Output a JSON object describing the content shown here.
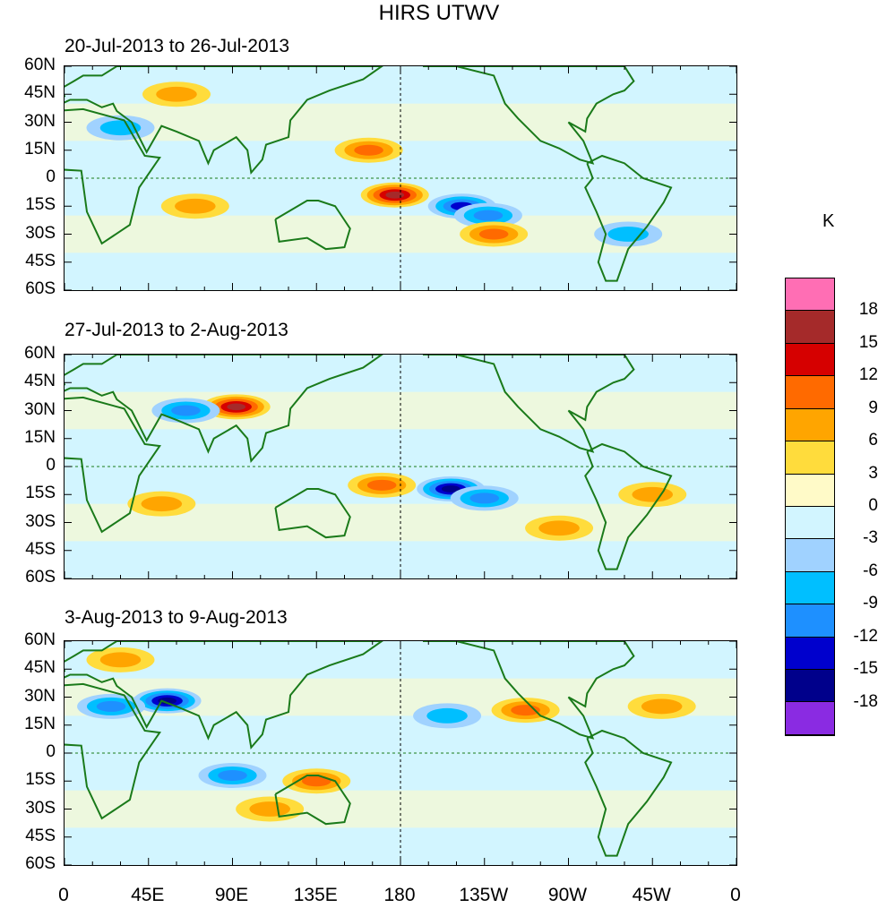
{
  "figure": {
    "title": "HIRS UTWV"
  },
  "panels": [
    {
      "title": "20-Jul-2013 to 26-Jul-2013"
    },
    {
      "title": "27-Jul-2013 to 2-Aug-2013"
    },
    {
      "title": "3-Aug-2013 to 9-Aug-2013"
    }
  ],
  "axes": {
    "latitude_ticks": [
      "60N",
      "45N",
      "30N",
      "15N",
      "0",
      "15S",
      "30S",
      "45S",
      "60S"
    ],
    "longitude_ticks": [
      "0",
      "45E",
      "90E",
      "135E",
      "180",
      "135W",
      "90W",
      "45W",
      "0"
    ]
  },
  "colorbar": {
    "unit": "K",
    "labels": [
      "18",
      "15",
      "12",
      "9",
      "6",
      "3",
      "0",
      "-3",
      "-6",
      "-9",
      "-12",
      "-15",
      "-18"
    ],
    "colors": [
      "#ff6eb4",
      "#a52a2a",
      "#d60000",
      "#ff6a00",
      "#ffa500",
      "#ffdc3c",
      "#fffac8",
      "#d2f5ff",
      "#a0d2ff",
      "#00bfff",
      "#1e90ff",
      "#0000cd",
      "#00008b",
      "#8a2be2"
    ]
  },
  "chart_data": {
    "type": "heatmap",
    "title": "HIRS UTWV",
    "panels": [
      "20-Jul-2013 to 26-Jul-2013",
      "27-Jul-2013 to 2-Aug-2013",
      "3-Aug-2013 to 9-Aug-2013"
    ],
    "lon_range": [
      0,
      360
    ],
    "lat_range": [
      -60,
      60
    ],
    "levels": [
      -18,
      -15,
      -12,
      -9,
      -6,
      -3,
      0,
      3,
      6,
      9,
      12,
      15,
      18
    ],
    "unit": "K",
    "features": [
      [
        {
          "lon": 177,
          "lat": -9,
          "value": 15
        },
        {
          "lon": 213,
          "lat": -15,
          "value": -12
        },
        {
          "lon": 227,
          "lat": -20,
          "value": -9
        },
        {
          "lon": 163,
          "lat": 15,
          "value": 9
        },
        {
          "lon": 230,
          "lat": -30,
          "value": 9
        },
        {
          "lon": 70,
          "lat": -15,
          "value": 6
        },
        {
          "lon": 60,
          "lat": 45,
          "value": 6
        },
        {
          "lon": 302,
          "lat": -30,
          "value": -6
        },
        {
          "lon": 30,
          "lat": 27,
          "value": -6
        }
      ],
      [
        {
          "lon": 92,
          "lat": 32,
          "value": 15
        },
        {
          "lon": 207,
          "lat": -12,
          "value": -15
        },
        {
          "lon": 225,
          "lat": -17,
          "value": -9
        },
        {
          "lon": 170,
          "lat": -10,
          "value": 9
        },
        {
          "lon": 65,
          "lat": 30,
          "value": -9
        },
        {
          "lon": 265,
          "lat": -33,
          "value": 6
        },
        {
          "lon": 315,
          "lat": -15,
          "value": 6
        },
        {
          "lon": 52,
          "lat": -20,
          "value": 6
        }
      ],
      [
        {
          "lon": 55,
          "lat": 28,
          "value": -15
        },
        {
          "lon": 25,
          "lat": 25,
          "value": -9
        },
        {
          "lon": 135,
          "lat": -15,
          "value": 9
        },
        {
          "lon": 110,
          "lat": -30,
          "value": 6
        },
        {
          "lon": 90,
          "lat": -12,
          "value": -9
        },
        {
          "lon": 205,
          "lat": 20,
          "value": -6
        },
        {
          "lon": 247,
          "lat": 23,
          "value": 9
        },
        {
          "lon": 320,
          "lat": 25,
          "value": 6
        },
        {
          "lon": 30,
          "lat": 50,
          "value": 6
        }
      ]
    ]
  }
}
